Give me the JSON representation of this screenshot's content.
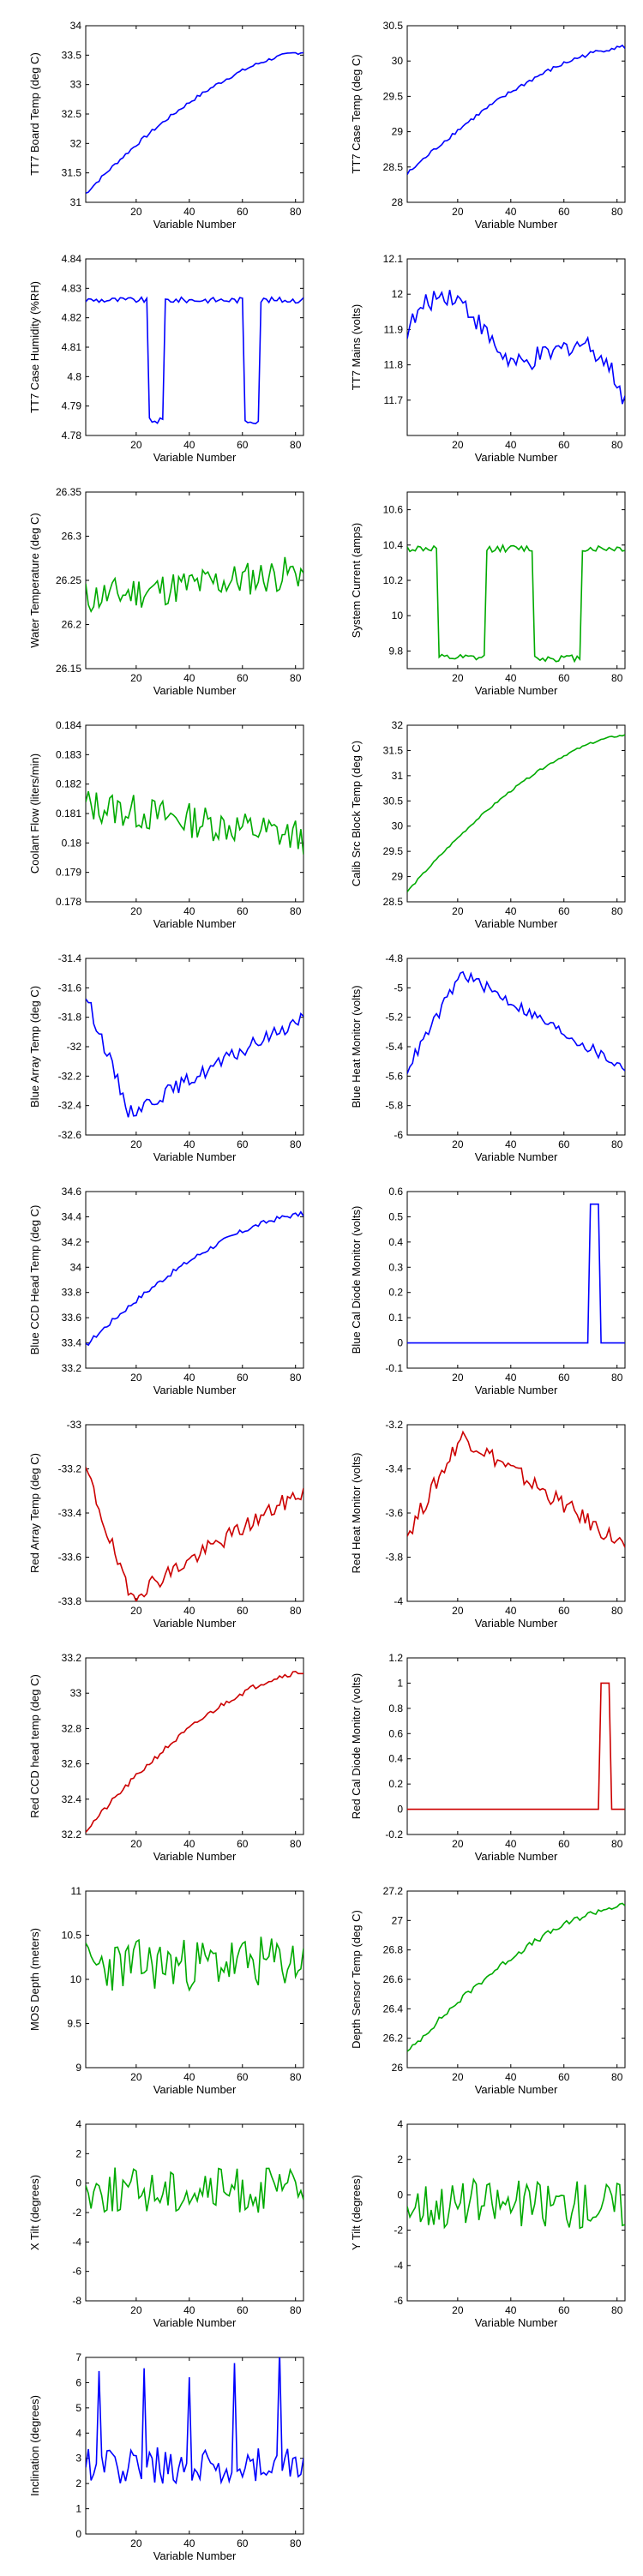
{
  "chart_data": [
    {
      "type": "line",
      "title": "",
      "xlabel": "Variable Number",
      "ylabel": "TT7 Board Temp (deg C)",
      "xlim": [
        1,
        83
      ],
      "ylim": [
        31,
        34
      ],
      "xticks": [
        20,
        40,
        60,
        80
      ],
      "yticks": [
        31,
        31.5,
        32,
        32.5,
        33,
        33.5,
        34
      ],
      "color": "#0000FF",
      "pattern": "rise",
      "noise": 0.03,
      "from": 31.15,
      "to": 33.55
    },
    {
      "type": "line",
      "title": "",
      "xlabel": "Variable Number",
      "ylabel": "TT7 Case Temp (deg C)",
      "xlim": [
        1,
        83
      ],
      "ylim": [
        28,
        30.5
      ],
      "xticks": [
        20,
        40,
        60,
        80
      ],
      "yticks": [
        28,
        28.5,
        29,
        29.5,
        30,
        30.5
      ],
      "color": "#0000FF",
      "pattern": "rise",
      "noise": 0.03,
      "from": 28.4,
      "to": 30.2
    },
    {
      "type": "line",
      "title": "",
      "xlabel": "Variable Number",
      "ylabel": "TT7 Case Humidity (%RH)",
      "xlim": [
        1,
        83
      ],
      "ylim": [
        4.78,
        4.84
      ],
      "xticks": [
        20,
        40,
        60,
        80
      ],
      "yticks": [
        4.78,
        4.79,
        4.8,
        4.81,
        4.82,
        4.83,
        4.84
      ],
      "color": "#0000FF",
      "pattern": "switch",
      "noise": 0.001,
      "low": 4.785,
      "high": 4.826,
      "dutyHigh": 0.75
    },
    {
      "type": "line",
      "title": "",
      "xlabel": "Variable Number",
      "ylabel": "TT7 Mains  (volts)",
      "xlim": [
        1,
        83
      ],
      "ylim": [
        11.6,
        12.1
      ],
      "xticks": [
        20,
        40,
        60,
        80
      ],
      "yticks": [
        11.7,
        11.8,
        11.9,
        12,
        12.1
      ],
      "color": "#0000FF",
      "pattern": "mains",
      "noise": 0.03,
      "from": 11.9,
      "to": 11.65
    },
    {
      "type": "line",
      "title": "",
      "xlabel": "Variable Number",
      "ylabel": "Water Temperature (deg C)",
      "xlim": [
        1,
        83
      ],
      "ylim": [
        26.15,
        26.35
      ],
      "xticks": [
        20,
        40,
        60,
        80
      ],
      "yticks": [
        26.15,
        26.2,
        26.25,
        26.3,
        26.35
      ],
      "color": "#00AA00",
      "pattern": "noisy",
      "noise": 0.02,
      "from": 26.23,
      "to": 26.26
    },
    {
      "type": "line",
      "title": "",
      "xlabel": "Variable Number",
      "ylabel": "System Current (amps)",
      "xlim": [
        1,
        83
      ],
      "ylim": [
        9.7,
        10.7
      ],
      "xticks": [
        20,
        40,
        60,
        80
      ],
      "yticks": [
        9.8,
        10,
        10.2,
        10.4,
        10.6
      ],
      "color": "#00AA00",
      "pattern": "switch",
      "noise": 0.02,
      "low": 9.76,
      "high": 10.38,
      "dutyHigh": 0.6
    },
    {
      "type": "line",
      "title": "",
      "xlabel": "Variable Number",
      "ylabel": "Coolant Flow (liters/min)",
      "xlim": [
        1,
        83
      ],
      "ylim": [
        0.178,
        0.184
      ],
      "xticks": [
        20,
        40,
        60,
        80
      ],
      "yticks": [
        0.178,
        0.179,
        0.18,
        0.181,
        0.182,
        0.183,
        0.184
      ],
      "color": "#00AA00",
      "pattern": "noisy",
      "noise": 0.0006,
      "from": 0.1813,
      "to": 0.1802
    },
    {
      "type": "line",
      "title": "",
      "xlabel": "Variable Number",
      "ylabel": "Calib Src Block Temp (deg C)",
      "xlim": [
        1,
        83
      ],
      "ylim": [
        28.5,
        32
      ],
      "xticks": [
        20,
        40,
        60,
        80
      ],
      "yticks": [
        28.5,
        29,
        29.5,
        30,
        30.5,
        31,
        31.5,
        32
      ],
      "color": "#00AA00",
      "pattern": "rise",
      "noise": 0.02,
      "from": 28.7,
      "to": 31.8
    },
    {
      "type": "line",
      "title": "",
      "xlabel": "Variable Number",
      "ylabel": "Blue Array Temp (deg C)",
      "xlim": [
        1,
        83
      ],
      "ylim": [
        -32.6,
        -31.4
      ],
      "xticks": [
        20,
        40,
        60,
        80
      ],
      "yticks": [
        -32.6,
        -32.4,
        -32.2,
        -32,
        -31.8,
        -31.6,
        -31.4
      ],
      "color": "#0000FF",
      "pattern": "dip",
      "noise": 0.05,
      "from": -31.65,
      "bottom": -32.45,
      "to": -31.8
    },
    {
      "type": "line",
      "title": "",
      "xlabel": "Variable Number",
      "ylabel": "Blue Heat Monitor (volts)",
      "xlim": [
        1,
        83
      ],
      "ylim": [
        -6,
        -4.8
      ],
      "xticks": [
        20,
        40,
        60,
        80
      ],
      "yticks": [
        -6,
        -5.8,
        -5.6,
        -5.4,
        -5.2,
        -5,
        -4.8
      ],
      "color": "#0000FF",
      "pattern": "hump",
      "noise": 0.04,
      "from": -5.55,
      "peak": -4.9,
      "to": -5.55
    },
    {
      "type": "line",
      "title": "",
      "xlabel": "Variable Number",
      "ylabel": "Blue CCD Head Temp (deg C)",
      "xlim": [
        1,
        83
      ],
      "ylim": [
        33.2,
        34.6
      ],
      "xticks": [
        20,
        40,
        60,
        80
      ],
      "yticks": [
        33.2,
        33.4,
        33.6,
        33.8,
        34,
        34.2,
        34.4,
        34.6
      ],
      "color": "#0000FF",
      "pattern": "rise",
      "noise": 0.02,
      "from": 33.38,
      "to": 34.42
    },
    {
      "type": "line",
      "title": "",
      "xlabel": "Variable Number",
      "ylabel": "Blue Cal Diode Monitor (volts)",
      "xlim": [
        1,
        83
      ],
      "ylim": [
        -0.1,
        0.6
      ],
      "xticks": [
        20,
        40,
        60,
        80
      ],
      "yticks": [
        -0.1,
        0,
        0.1,
        0.2,
        0.3,
        0.4,
        0.5,
        0.6
      ],
      "color": "#0000FF",
      "pattern": "pulse",
      "noise": 0,
      "base": 0,
      "pulse": 0.55,
      "pulseStart": 70,
      "pulseEnd": 73
    },
    {
      "type": "line",
      "title": "",
      "xlabel": "Variable Number",
      "ylabel": "Red Array Temp (deg C)",
      "xlim": [
        1,
        83
      ],
      "ylim": [
        -33.8,
        -33
      ],
      "xticks": [
        20,
        40,
        60,
        80
      ],
      "yticks": [
        -33.8,
        -33.6,
        -33.4,
        -33.2,
        -33
      ],
      "color": "#CC0000",
      "pattern": "dip",
      "noise": 0.04,
      "from": -33.2,
      "bottom": -33.78,
      "to": -33.3
    },
    {
      "type": "line",
      "title": "",
      "xlabel": "Variable Number",
      "ylabel": "Red Heat Monitor (volts)",
      "xlim": [
        1,
        83
      ],
      "ylim": [
        -4,
        -3.2
      ],
      "xticks": [
        20,
        40,
        60,
        80
      ],
      "yticks": [
        -4,
        -3.8,
        -3.6,
        -3.4,
        -3.2
      ],
      "color": "#CC0000",
      "pattern": "hump",
      "noise": 0.04,
      "from": -3.7,
      "peak": -3.25,
      "to": -3.75
    },
    {
      "type": "line",
      "title": "",
      "xlabel": "Variable Number",
      "ylabel": "Red CCD head temp (deg C)",
      "xlim": [
        1,
        83
      ],
      "ylim": [
        32.2,
        33.2
      ],
      "xticks": [
        20,
        40,
        60,
        80
      ],
      "yticks": [
        32.2,
        32.4,
        32.6,
        32.8,
        33,
        33.2
      ],
      "color": "#CC0000",
      "pattern": "rise",
      "noise": 0.015,
      "from": 32.22,
      "to": 33.12
    },
    {
      "type": "line",
      "title": "",
      "xlabel": "Variable Number",
      "ylabel": "Red Cal Diode Monitor (volts)",
      "xlim": [
        1,
        83
      ],
      "ylim": [
        -0.2,
        1.2
      ],
      "xticks": [
        20,
        40,
        60,
        80
      ],
      "yticks": [
        -0.2,
        0,
        0.2,
        0.4,
        0.6,
        0.8,
        1,
        1.2
      ],
      "color": "#CC0000",
      "pattern": "pulse",
      "noise": 0,
      "base": 0,
      "pulse": 1,
      "pulseStart": 74,
      "pulseEnd": 77
    },
    {
      "type": "line",
      "title": "",
      "xlabel": "Variable Number",
      "ylabel": "MOS Depth  (meters)",
      "xlim": [
        1,
        83
      ],
      "ylim": [
        9,
        11
      ],
      "xticks": [
        20,
        40,
        60,
        80
      ],
      "yticks": [
        9,
        9.5,
        10,
        10.5,
        11
      ],
      "color": "#00AA00",
      "pattern": "noisy",
      "noise": 0.3,
      "from": 10.15,
      "to": 10.2
    },
    {
      "type": "line",
      "title": "",
      "xlabel": "Variable Number",
      "ylabel": "Depth Sensor Temp (deg C)",
      "xlim": [
        1,
        83
      ],
      "ylim": [
        26,
        27.2
      ],
      "xticks": [
        20,
        40,
        60,
        80
      ],
      "yticks": [
        26,
        26.2,
        26.4,
        26.6,
        26.8,
        27,
        27.2
      ],
      "color": "#00AA00",
      "pattern": "rise",
      "noise": 0.02,
      "from": 26.1,
      "to": 27.1
    },
    {
      "type": "line",
      "title": "",
      "xlabel": "Variable Number",
      "ylabel": "X Tilt  (degrees)",
      "xlim": [
        1,
        83
      ],
      "ylim": [
        -8,
        4
      ],
      "xticks": [
        20,
        40,
        60,
        80
      ],
      "yticks": [
        -8,
        -6,
        -4,
        -2,
        0,
        2,
        4
      ],
      "color": "#00AA00",
      "pattern": "noisy",
      "noise": 1.6,
      "from": -0.5,
      "to": -0.5
    },
    {
      "type": "line",
      "title": "",
      "xlabel": "Variable Number",
      "ylabel": "Y Tilt  (degrees)",
      "xlim": [
        1,
        83
      ],
      "ylim": [
        -6,
        4
      ],
      "xticks": [
        20,
        40,
        60,
        80
      ],
      "yticks": [
        -6,
        -4,
        -2,
        0,
        2,
        4
      ],
      "color": "#00AA00",
      "pattern": "noisy",
      "noise": 1.4,
      "from": -0.5,
      "to": -0.5
    },
    {
      "type": "line",
      "title": "",
      "xlabel": "Variable Number",
      "ylabel": "Inclination  (degrees)",
      "xlim": [
        1,
        83
      ],
      "ylim": [
        0,
        7
      ],
      "xticks": [
        20,
        40,
        60,
        80
      ],
      "yticks": [
        0,
        1,
        2,
        3,
        4,
        5,
        6,
        7
      ],
      "color": "#0000FF",
      "pattern": "spiky",
      "noise": 1.2,
      "from": 2,
      "to": 2
    }
  ]
}
